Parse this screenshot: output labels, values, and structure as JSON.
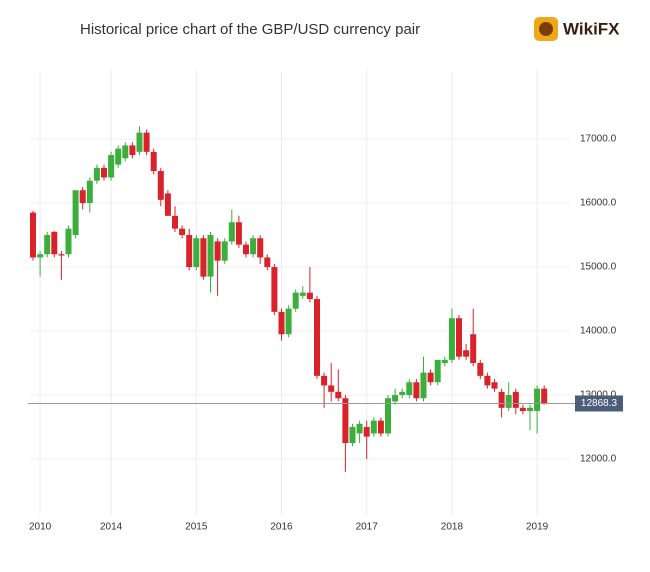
{
  "title": "Historical price chart of the GBP/USD currency pair",
  "logo": "WikiFX",
  "chart_data": {
    "type": "candlestick",
    "categories": [
      null,
      "2010",
      null,
      null,
      null,
      null,
      null,
      null,
      null,
      null,
      null,
      "2014",
      null,
      null,
      null,
      null,
      null,
      null,
      null,
      null,
      null,
      null,
      null,
      "2015",
      null,
      null,
      null,
      null,
      null,
      null,
      null,
      null,
      null,
      null,
      null,
      "2016",
      null,
      null,
      null,
      null,
      null,
      null,
      null,
      null,
      null,
      null,
      null,
      "2017",
      null,
      null,
      null,
      null,
      null,
      null,
      null,
      null,
      null,
      null,
      null,
      "2018",
      null,
      null,
      null,
      null,
      null,
      null,
      null,
      null,
      null,
      null,
      null,
      "2019",
      null
    ],
    "open": [
      15850,
      15150,
      15200,
      15550,
      15200,
      15200,
      15500,
      16200,
      16000,
      16350,
      16550,
      16400,
      16600,
      16700,
      16900,
      16800,
      17100,
      16800,
      16500,
      16150,
      15800,
      15600,
      15500,
      15000,
      15450,
      14850,
      15400,
      15100,
      15400,
      15700,
      15350,
      15200,
      15450,
      15150,
      15000,
      14300,
      13950,
      14350,
      14550,
      14600,
      14500,
      13300,
      13150,
      13050,
      12950,
      12250,
      12400,
      12500,
      12400,
      12600,
      12400,
      12900,
      13000,
      13000,
      13200,
      12950,
      13350,
      13200,
      13500,
      13550,
      14200,
      13700,
      13950,
      13500,
      13300,
      13200,
      13050,
      12800,
      13050,
      12800,
      12750,
      12750,
      13100
    ],
    "high": [
      15880,
      15250,
      15550,
      15560,
      15250,
      15650,
      16200,
      16250,
      16400,
      16600,
      16600,
      16800,
      16900,
      16950,
      16950,
      17200,
      17150,
      16850,
      16550,
      16200,
      15950,
      15650,
      15600,
      15500,
      15500,
      15550,
      15450,
      15450,
      15900,
      15800,
      15400,
      15500,
      15500,
      15200,
      15050,
      14350,
      14400,
      14650,
      14700,
      15000,
      14550,
      13350,
      13500,
      13400,
      13000,
      12550,
      12600,
      12600,
      12650,
      12650,
      13000,
      13100,
      13100,
      13250,
      13250,
      13600,
      13400,
      13550,
      13600,
      14350,
      14250,
      13800,
      14350,
      13550,
      13350,
      13250,
      13100,
      13200,
      13100,
      12850,
      12850,
      13150,
      13150
    ],
    "low": [
      15100,
      14850,
      15150,
      15150,
      14800,
      15150,
      15450,
      15900,
      15850,
      16300,
      16350,
      16350,
      16550,
      16650,
      16700,
      16750,
      16750,
      16450,
      15950,
      15800,
      15550,
      15450,
      14950,
      14950,
      14800,
      14600,
      14550,
      15050,
      15350,
      15300,
      15150,
      15150,
      15050,
      14950,
      14250,
      13850,
      13900,
      14300,
      14500,
      14450,
      13250,
      12800,
      12900,
      12900,
      11800,
      12200,
      12250,
      12000,
      12350,
      12350,
      12350,
      12850,
      12950,
      12950,
      12900,
      12900,
      13150,
      13150,
      13450,
      13500,
      13550,
      13550,
      13450,
      13250,
      13100,
      13050,
      12650,
      12750,
      12700,
      12700,
      12450,
      12400,
      12850
    ],
    "close": [
      15150,
      15200,
      15500,
      15200,
      15180,
      15600,
      16200,
      16000,
      16350,
      16550,
      16400,
      16750,
      16850,
      16900,
      16750,
      17100,
      16800,
      16500,
      16050,
      15800,
      15600,
      15500,
      15000,
      15450,
      14850,
      15500,
      15100,
      15400,
      15700,
      15350,
      15200,
      15450,
      15150,
      15000,
      14300,
      13950,
      14350,
      14600,
      14600,
      14500,
      13300,
      13150,
      13050,
      12950,
      12250,
      12500,
      12550,
      12350,
      12600,
      12400,
      12950,
      13000,
      13050,
      13200,
      12950,
      13350,
      13200,
      13550,
      13550,
      14200,
      13600,
      13600,
      13500,
      13300,
      13150,
      13100,
      12800,
      13000,
      12800,
      12750,
      12800,
      13100,
      12868.3
    ],
    "up_color": "#3cae3c",
    "down_color": "#d9222a",
    "last_price": 12868.3,
    "ylim": [
      11360,
      17610
    ],
    "yticks": [
      {
        "value": 12000,
        "label": "12000.0"
      },
      {
        "value": 13000,
        "label": "13000.0"
      },
      {
        "value": 14000,
        "label": "14000.0"
      },
      {
        "value": 15000,
        "label": "15000.0"
      },
      {
        "value": 16000,
        "label": "16000.0"
      },
      {
        "value": 17000,
        "label": "17000.0"
      }
    ],
    "grid": true
  }
}
